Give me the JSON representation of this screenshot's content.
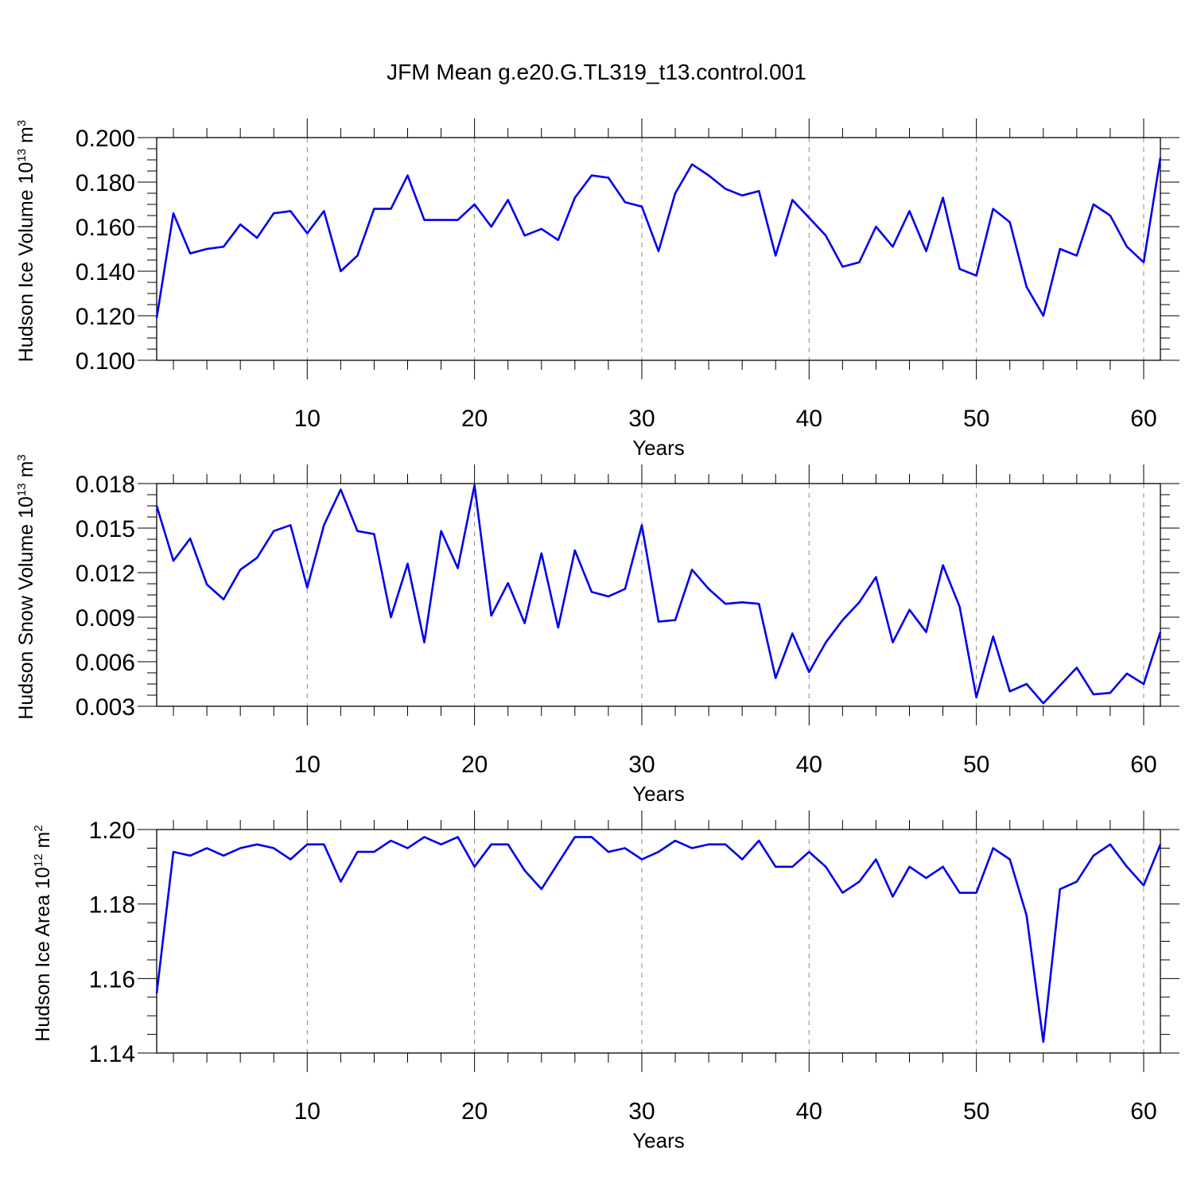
{
  "figure": {
    "title": "JFM Mean g.e20.G.TL319_t13.control.001"
  },
  "style": {
    "line_color": "#0000ee",
    "grid_color": "#888888",
    "axis_color": "#000000"
  },
  "chart_data": [
    {
      "type": "line",
      "xlabel": "Years",
      "ylabel_main": "Hudson Ice Volume 10",
      "ylabel_exp": "13",
      "ylabel_unit": " m",
      "ylabel_unit_exp": "3",
      "xlim": [
        1,
        61
      ],
      "ylim": [
        0.1,
        0.2
      ],
      "xticks": [
        10,
        20,
        30,
        40,
        50,
        60
      ],
      "xtick_labels": [
        "10",
        "20",
        "30",
        "40",
        "50",
        "60"
      ],
      "yticks": [
        0.1,
        0.12,
        0.14,
        0.16,
        0.18,
        0.2
      ],
      "ytick_labels": [
        "0.100",
        "0.120",
        "0.140",
        "0.160",
        "0.180",
        "0.200"
      ],
      "grid": "vertical dashed",
      "series": [
        {
          "x": [
            1,
            2,
            3,
            4,
            5,
            6,
            7,
            8,
            9,
            10,
            11,
            12,
            13,
            14,
            15,
            16,
            17,
            18,
            19,
            20,
            21,
            22,
            23,
            24,
            25,
            26,
            27,
            28,
            29,
            30,
            31,
            32,
            33,
            34,
            35,
            36,
            37,
            38,
            39,
            40,
            41,
            42,
            43,
            44,
            45,
            46,
            47,
            48,
            49,
            50,
            51,
            52,
            53,
            54,
            55,
            56,
            57,
            58,
            59,
            60,
            61
          ],
          "y": [
            0.119,
            0.166,
            0.148,
            0.15,
            0.151,
            0.161,
            0.155,
            0.166,
            0.167,
            0.157,
            0.167,
            0.14,
            0.147,
            0.168,
            0.168,
            0.183,
            0.163,
            0.163,
            0.163,
            0.17,
            0.16,
            0.172,
            0.156,
            0.159,
            0.154,
            0.173,
            0.183,
            0.182,
            0.171,
            0.169,
            0.149,
            0.175,
            0.188,
            0.183,
            0.177,
            0.174,
            0.176,
            0.147,
            0.172,
            0.164,
            0.156,
            0.142,
            0.144,
            0.16,
            0.151,
            0.167,
            0.149,
            0.173,
            0.141,
            0.138,
            0.168,
            0.162,
            0.133,
            0.12,
            0.15,
            0.147,
            0.17,
            0.165,
            0.151,
            0.144,
            0.191
          ]
        }
      ]
    },
    {
      "type": "line",
      "xlabel": "Years",
      "ylabel_main": "Hudson Snow Volume 10",
      "ylabel_exp": "13",
      "ylabel_unit": " m",
      "ylabel_unit_exp": "3",
      "xlim": [
        1,
        61
      ],
      "ylim": [
        0.003,
        0.018
      ],
      "xticks": [
        10,
        20,
        30,
        40,
        50,
        60
      ],
      "xtick_labels": [
        "10",
        "20",
        "30",
        "40",
        "50",
        "60"
      ],
      "yticks": [
        0.003,
        0.006,
        0.009,
        0.012,
        0.015,
        0.018
      ],
      "ytick_labels": [
        "0.003",
        "0.006",
        "0.009",
        "0.012",
        "0.015",
        "0.018"
      ],
      "grid": "vertical dashed",
      "series": [
        {
          "x": [
            1,
            2,
            3,
            4,
            5,
            6,
            7,
            8,
            9,
            10,
            11,
            12,
            13,
            14,
            15,
            16,
            17,
            18,
            19,
            20,
            21,
            22,
            23,
            24,
            25,
            26,
            27,
            28,
            29,
            30,
            31,
            32,
            33,
            34,
            35,
            36,
            37,
            38,
            39,
            40,
            41,
            42,
            43,
            44,
            45,
            46,
            47,
            48,
            49,
            50,
            51,
            52,
            53,
            54,
            55,
            56,
            57,
            58,
            59,
            60,
            61
          ],
          "y": [
            0.0165,
            0.0128,
            0.0143,
            0.0112,
            0.0102,
            0.0122,
            0.013,
            0.0148,
            0.0152,
            0.011,
            0.0152,
            0.0176,
            0.0148,
            0.0146,
            0.009,
            0.0126,
            0.0073,
            0.0148,
            0.0123,
            0.0179,
            0.0091,
            0.0113,
            0.0086,
            0.0133,
            0.0083,
            0.0135,
            0.0107,
            0.0104,
            0.0109,
            0.0152,
            0.0087,
            0.0088,
            0.0122,
            0.0109,
            0.0099,
            0.01,
            0.0099,
            0.0049,
            0.0079,
            0.0053,
            0.0073,
            0.0088,
            0.01,
            0.0117,
            0.0073,
            0.0095,
            0.008,
            0.0125,
            0.0097,
            0.0036,
            0.0077,
            0.004,
            0.0045,
            0.0032,
            0.0044,
            0.0056,
            0.0038,
            0.0039,
            0.0052,
            0.0045,
            0.008
          ]
        }
      ]
    },
    {
      "type": "line",
      "xlabel": "Years",
      "ylabel_main": "Hudson Ice Area 10",
      "ylabel_exp": "12",
      "ylabel_unit": " m",
      "ylabel_unit_exp": "2",
      "xlim": [
        1,
        61
      ],
      "ylim": [
        1.14,
        1.2
      ],
      "xticks": [
        10,
        20,
        30,
        40,
        50,
        60
      ],
      "xtick_labels": [
        "10",
        "20",
        "30",
        "40",
        "50",
        "60"
      ],
      "yticks": [
        1.14,
        1.16,
        1.18,
        1.2
      ],
      "ytick_labels": [
        "1.14",
        "1.16",
        "1.18",
        "1.20"
      ],
      "grid": "vertical dashed",
      "series": [
        {
          "x": [
            1,
            2,
            3,
            4,
            5,
            6,
            7,
            8,
            9,
            10,
            11,
            12,
            13,
            14,
            15,
            16,
            17,
            18,
            19,
            20,
            21,
            22,
            23,
            24,
            25,
            26,
            27,
            28,
            29,
            30,
            31,
            32,
            33,
            34,
            35,
            36,
            37,
            38,
            39,
            40,
            41,
            42,
            43,
            44,
            45,
            46,
            47,
            48,
            49,
            50,
            51,
            52,
            53,
            54,
            55,
            56,
            57,
            58,
            59,
            60,
            61
          ],
          "y": [
            1.156,
            1.194,
            1.193,
            1.195,
            1.193,
            1.195,
            1.196,
            1.195,
            1.192,
            1.196,
            1.196,
            1.186,
            1.194,
            1.194,
            1.197,
            1.195,
            1.198,
            1.196,
            1.198,
            1.19,
            1.196,
            1.196,
            1.189,
            1.184,
            1.191,
            1.198,
            1.198,
            1.194,
            1.195,
            1.192,
            1.194,
            1.197,
            1.195,
            1.196,
            1.196,
            1.192,
            1.197,
            1.19,
            1.19,
            1.194,
            1.19,
            1.183,
            1.186,
            1.192,
            1.182,
            1.19,
            1.187,
            1.19,
            1.183,
            1.183,
            1.195,
            1.192,
            1.177,
            1.143,
            1.184,
            1.186,
            1.193,
            1.196,
            1.19,
            1.185,
            1.196
          ]
        }
      ]
    }
  ]
}
